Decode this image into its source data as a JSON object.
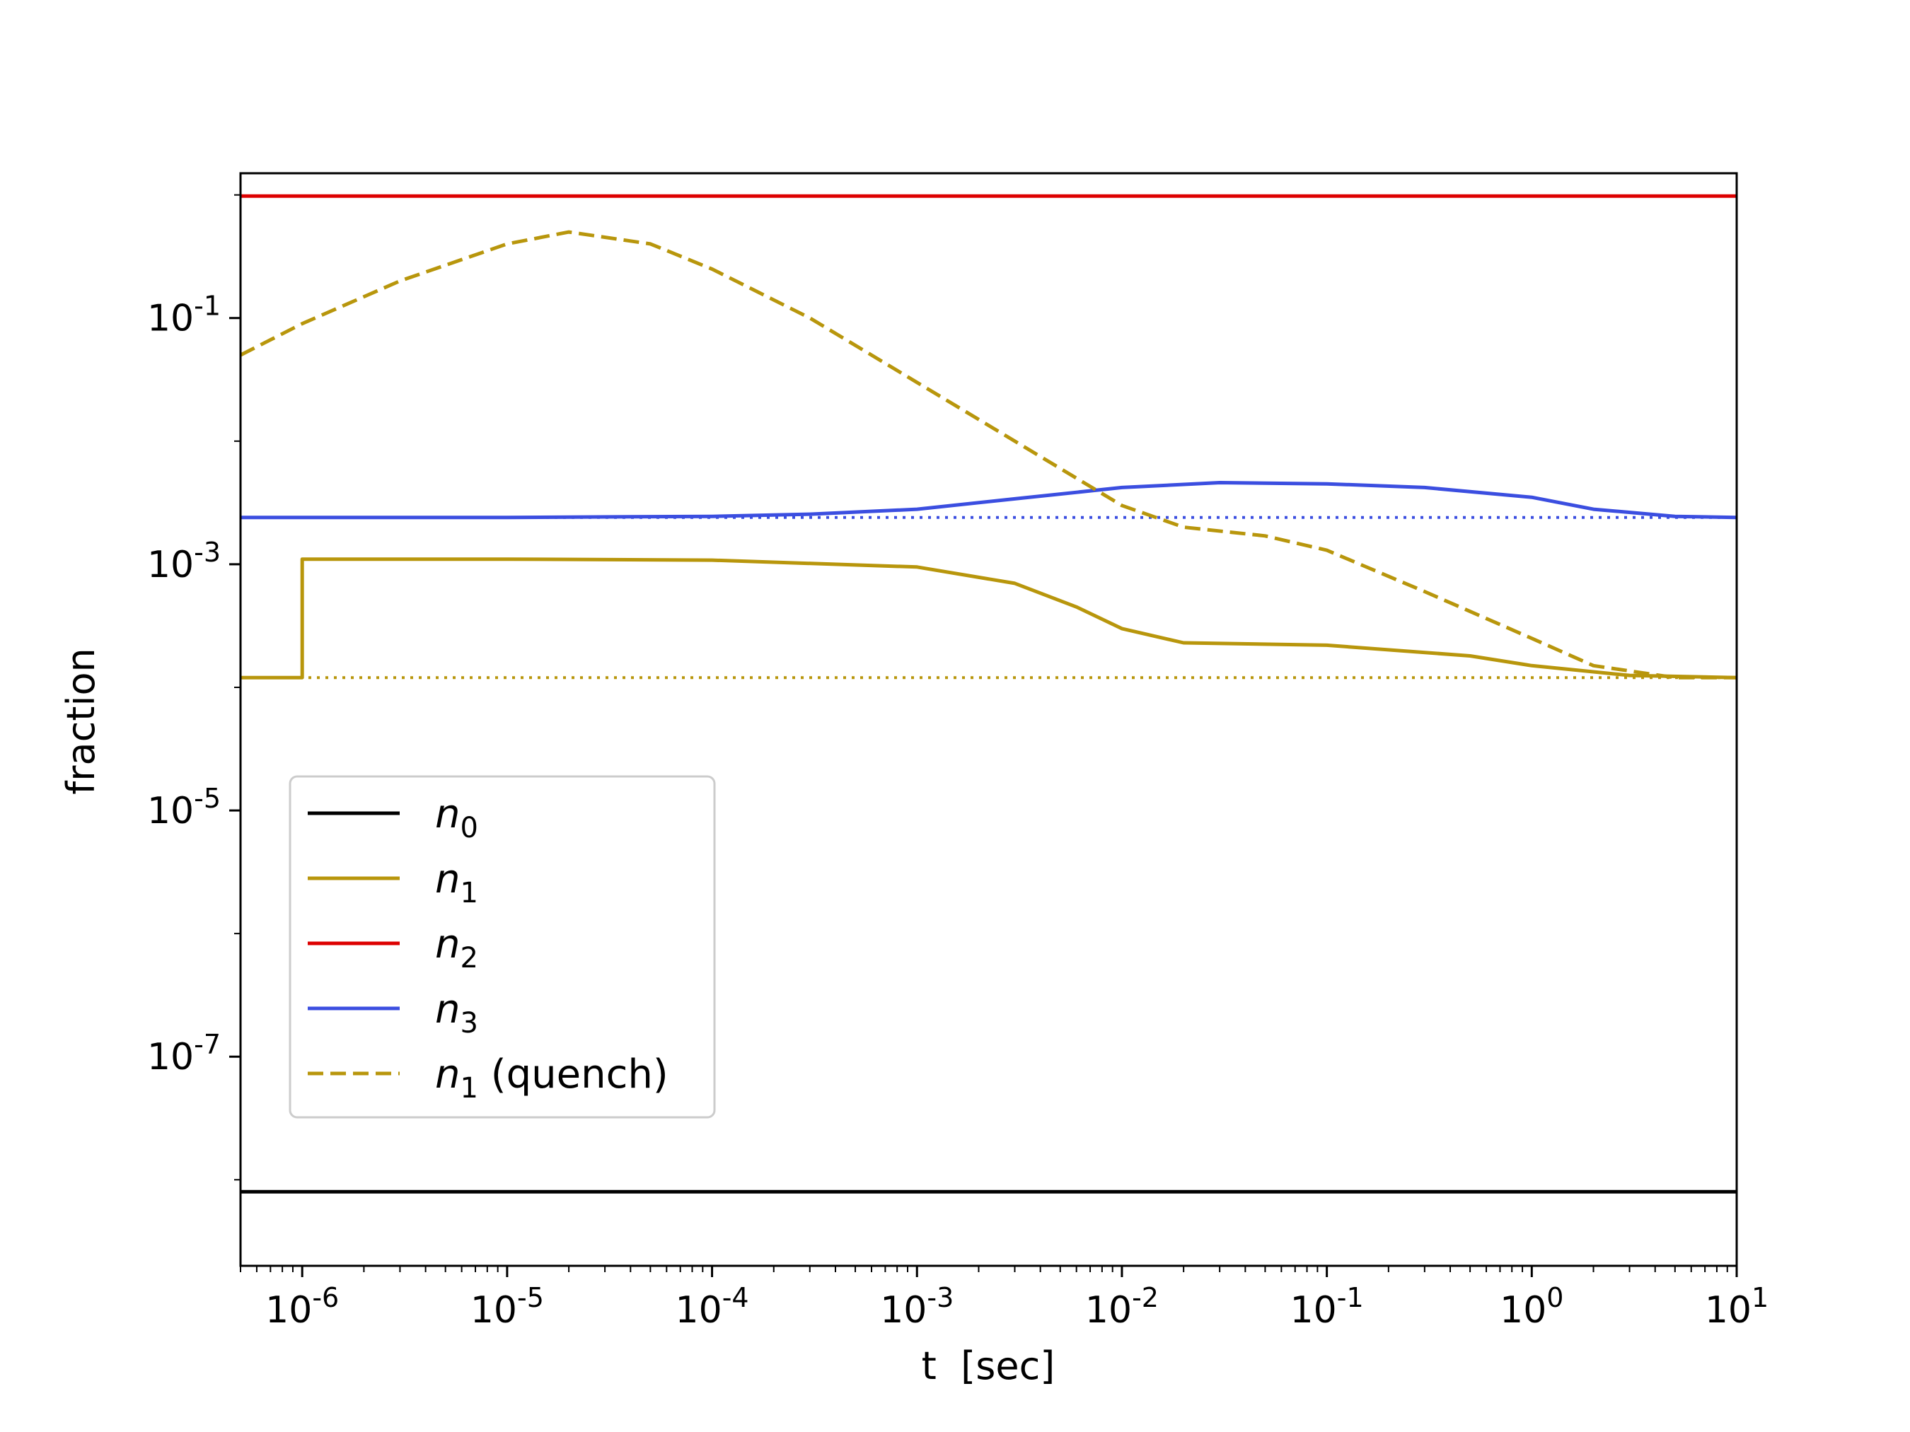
{
  "chart_data": {
    "type": "line",
    "xlabel": "t  [sec]",
    "ylabel": "fraction",
    "x_scale": "log",
    "y_scale": "log",
    "xlim": [
      5e-07,
      10
    ],
    "ylim": [
      2e-09,
      1.5
    ],
    "x_ticks": [
      {
        "value": 1e-06,
        "label": "10^-6"
      },
      {
        "value": 1e-05,
        "label": "10^-5"
      },
      {
        "value": 0.0001,
        "label": "10^-4"
      },
      {
        "value": 0.001,
        "label": "10^-3"
      },
      {
        "value": 0.01,
        "label": "10^-2"
      },
      {
        "value": 0.1,
        "label": "10^-1"
      },
      {
        "value": 1,
        "label": "10^0"
      },
      {
        "value": 10,
        "label": "10^1"
      }
    ],
    "y_ticks": [
      {
        "value": 0.1,
        "label": "10^-1"
      },
      {
        "value": 0.001,
        "label": "10^-3"
      },
      {
        "value": 1e-05,
        "label": "10^-5"
      },
      {
        "value": 1e-07,
        "label": "10^-7"
      }
    ],
    "grid": false,
    "legend_position": "lower-left",
    "series": [
      {
        "name": "n_0",
        "legend_base": "n",
        "legend_sub": "0",
        "legend_suffix": "",
        "color": "#000000",
        "style": "solid",
        "x": [
          5e-07,
          10
        ],
        "y": [
          8e-09,
          8e-09
        ]
      },
      {
        "name": "n_1",
        "legend_base": "n",
        "legend_sub": "1",
        "legend_suffix": "",
        "color": "#b8960c",
        "style": "solid",
        "x": [
          5e-07,
          1e-06,
          1e-06,
          1e-05,
          0.0001,
          0.001,
          0.003,
          0.006,
          0.01,
          0.02,
          0.1,
          0.5,
          1,
          3,
          10
        ],
        "y": [
          0.00012,
          0.00012,
          0.0011,
          0.0011,
          0.00108,
          0.00095,
          0.0007,
          0.00045,
          0.0003,
          0.00023,
          0.00022,
          0.00018,
          0.00015,
          0.000125,
          0.00012
        ]
      },
      {
        "name": "n_2",
        "legend_base": "n",
        "legend_sub": "2",
        "legend_suffix": "",
        "color": "#dd0000",
        "style": "solid",
        "x": [
          5e-07,
          10
        ],
        "y": [
          0.98,
          0.98
        ]
      },
      {
        "name": "n_3",
        "legend_base": "n",
        "legend_sub": "3",
        "legend_suffix": "",
        "color": "#3b4ee0",
        "style": "solid",
        "x": [
          5e-07,
          1e-05,
          0.0001,
          0.0003,
          0.001,
          0.003,
          0.01,
          0.03,
          0.1,
          0.3,
          1,
          2,
          5,
          10
        ],
        "y": [
          0.0024,
          0.0024,
          0.00245,
          0.00255,
          0.0028,
          0.0034,
          0.0042,
          0.0046,
          0.0045,
          0.0042,
          0.0035,
          0.0028,
          0.00245,
          0.0024
        ]
      },
      {
        "name": "n_1 (quench)",
        "legend_base": "n",
        "legend_sub": "1",
        "legend_suffix": " (quench)",
        "color": "#b8960c",
        "style": "dashed",
        "x": [
          5e-07,
          1e-06,
          3e-06,
          1e-05,
          2e-05,
          5e-05,
          0.0001,
          0.0003,
          0.001,
          0.003,
          0.006,
          0.01,
          0.02,
          0.05,
          0.1,
          0.3,
          1,
          2,
          5,
          10
        ],
        "y": [
          0.05,
          0.09,
          0.2,
          0.4,
          0.5,
          0.4,
          0.25,
          0.1,
          0.03,
          0.01,
          0.005,
          0.003,
          0.002,
          0.0017,
          0.0013,
          0.0006,
          0.00025,
          0.00015,
          0.00012,
          0.00012
        ]
      },
      {
        "name": "n_3 baseline",
        "color": "#3b4ee0",
        "style": "dotted",
        "legend": false,
        "x": [
          5e-07,
          10
        ],
        "y": [
          0.0024,
          0.0024
        ]
      },
      {
        "name": "n_1 baseline",
        "color": "#b8960c",
        "style": "dotted",
        "legend": false,
        "x": [
          5e-07,
          10
        ],
        "y": [
          0.00012,
          0.00012
        ]
      }
    ]
  }
}
